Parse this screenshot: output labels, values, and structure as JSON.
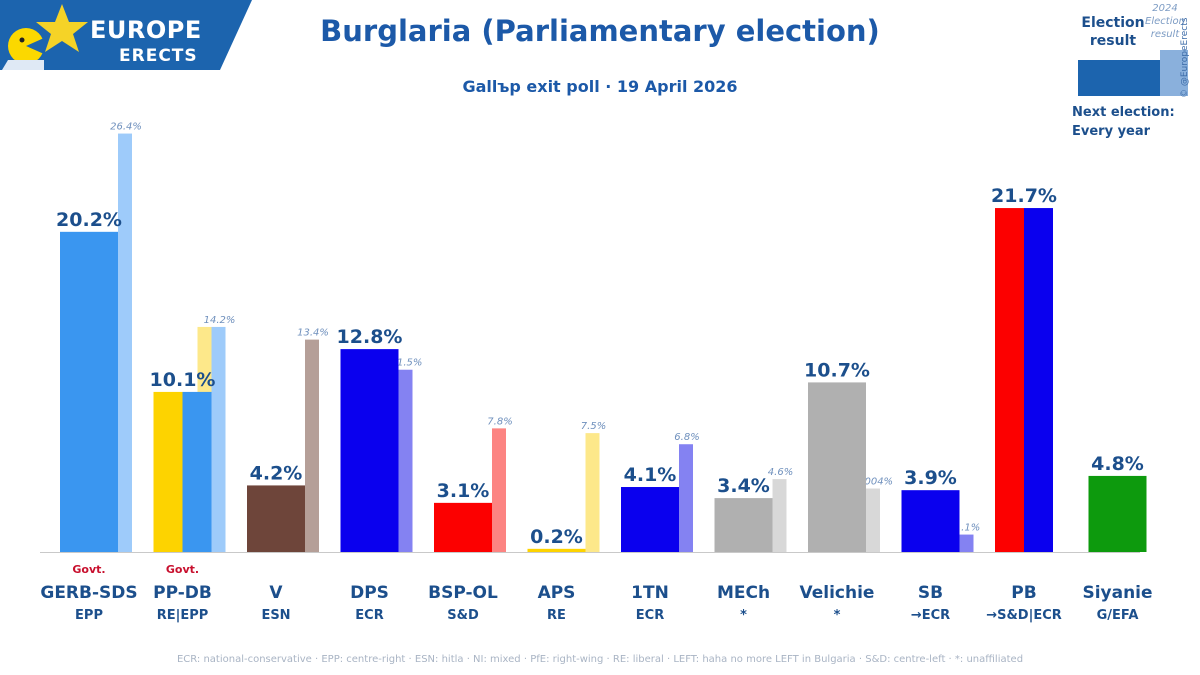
{
  "header": {
    "brand_top": "EUROPE",
    "brand_bottom": "ERECTS",
    "title": "Burglaria (Parliamentary election)",
    "subtitle": "Gallъp exit poll · 19 April 2026"
  },
  "legend": {
    "election_result": "Election result",
    "prev_result": "2024 Election result",
    "copyright": "© @EuropeErects",
    "next_election": "Next election:",
    "next_election_value": "Every year"
  },
  "colors": {
    "title": "#1c59a8",
    "banner": "#1c64ae",
    "star": "#f5d327",
    "baseline": "#c9c9c9"
  },
  "footnote": "ECR: national-conservative · EPP: centre-right · ESN: hitla · NI: mixed · PfE: right-wing · RE: liberal · LEFT: haha no more LEFT in Bulgaria · S&D: centre-left · *: unaffiliated",
  "chart_data": {
    "type": "bar",
    "title": "Burglaria (Parliamentary election)",
    "series": [
      {
        "name": "Election result",
        "values": [
          20.2,
          10.1,
          4.2,
          12.8,
          3.1,
          0.2,
          4.1,
          3.4,
          10.7,
          3.9,
          21.7,
          4.8
        ]
      },
      {
        "name": "2024 Election result",
        "values": [
          26.4,
          14.2,
          13.4,
          11.5,
          7.8,
          7.5,
          6.8,
          4.6,
          4.004,
          1.1,
          null,
          null
        ]
      }
    ],
    "parties": [
      {
        "name": "GERB-SDS",
        "group": "EPP",
        "value": 20.2,
        "value_label": "20.2%",
        "prev": 26.4,
        "prev_label": "26.4%",
        "colors": [
          "#3a96f0"
        ],
        "prev_colors": [
          "#9ecbfa"
        ],
        "govt": "Govt."
      },
      {
        "name": "PP-DB",
        "group": "RE|EPP",
        "value": 10.1,
        "value_label": "10.1%",
        "prev": 14.2,
        "prev_label": "14.2%",
        "colors": [
          "#fdd300",
          "#3a96f0"
        ],
        "prev_colors": [
          "#fde88a",
          "#9ecbfa"
        ],
        "govt": "Govt."
      },
      {
        "name": "V",
        "group": "ESN",
        "value": 4.2,
        "value_label": "4.2%",
        "prev": 13.4,
        "prev_label": "13.4%",
        "colors": [
          "#6e453a"
        ],
        "prev_colors": [
          "#b59f98"
        ],
        "govt": ""
      },
      {
        "name": "DPS",
        "group": "ECR",
        "value": 12.8,
        "value_label": "12.8%",
        "prev": 11.5,
        "prev_label": "11.5%",
        "colors": [
          "#0a00ee"
        ],
        "prev_colors": [
          "#8482f2"
        ],
        "govt": ""
      },
      {
        "name": "BSP-OL",
        "group": "S&D",
        "value": 3.1,
        "value_label": "3.1%",
        "prev": 7.8,
        "prev_label": "7.8%",
        "colors": [
          "#fc0000"
        ],
        "prev_colors": [
          "#fc8482"
        ],
        "govt": ""
      },
      {
        "name": "APS",
        "group": "RE",
        "value": 0.2,
        "value_label": "0.2%",
        "prev": 7.5,
        "prev_label": "7.5%",
        "colors": [
          "#fdd300"
        ],
        "prev_colors": [
          "#fde88a"
        ],
        "govt": ""
      },
      {
        "name": "1TN",
        "group": "ECR",
        "value": 4.1,
        "value_label": "4.1%",
        "prev": 6.8,
        "prev_label": "6.8%",
        "colors": [
          "#0a00ee"
        ],
        "prev_colors": [
          "#8482f2"
        ],
        "govt": ""
      },
      {
        "name": "MECh",
        "group": "*",
        "value": 3.4,
        "value_label": "3.4%",
        "prev": 4.6,
        "prev_label": "4.6%",
        "colors": [
          "#b0b0b0"
        ],
        "prev_colors": [
          "#d8d8d8"
        ],
        "govt": ""
      },
      {
        "name": "Velichie",
        "group": "*",
        "value": 10.7,
        "value_label": "10.7%",
        "prev": 4.004,
        "prev_label": "4.004%",
        "colors": [
          "#b0b0b0"
        ],
        "prev_colors": [
          "#d8d8d8"
        ],
        "govt": ""
      },
      {
        "name": "SB",
        "group": "→ECR",
        "value": 3.9,
        "value_label": "3.9%",
        "prev": 1.1,
        "prev_label": "1.1%",
        "colors": [
          "#0a00ee"
        ],
        "prev_colors": [
          "#8482f2"
        ],
        "govt": ""
      },
      {
        "name": "PB",
        "group": "→S&D|ECR",
        "value": 21.7,
        "value_label": "21.7%",
        "prev": null,
        "prev_label": "",
        "colors": [
          "#fc0000",
          "#0a00ee"
        ],
        "prev_colors": [],
        "govt": ""
      },
      {
        "name": "Siyanie",
        "group": "G/EFA",
        "value": 4.8,
        "value_label": "4.8%",
        "prev": null,
        "prev_label": "",
        "colors": [
          "#0d9a0d"
        ],
        "prev_colors": [],
        "govt": ""
      }
    ],
    "ylim": [
      0,
      26.4
    ]
  }
}
